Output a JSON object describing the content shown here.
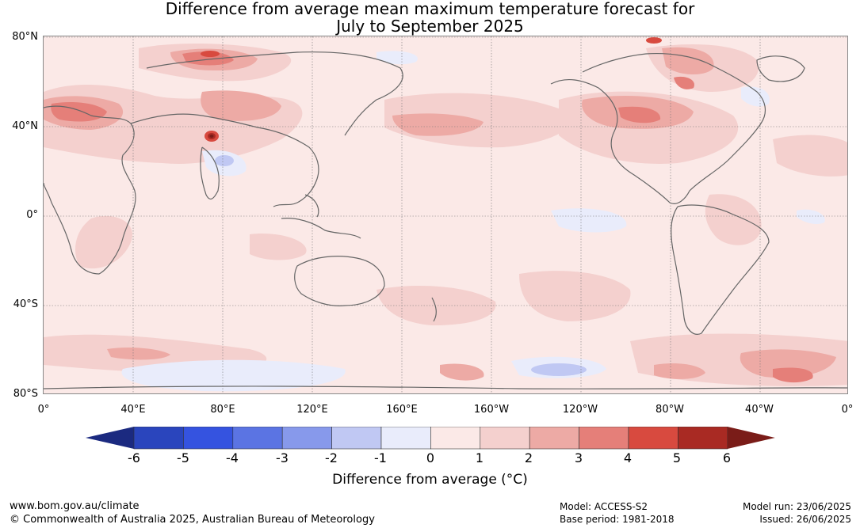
{
  "title": {
    "line1": "Difference from average mean maximum temperature forecast for",
    "line2": "July to September 2025"
  },
  "map": {
    "lat_labels": [
      "80°N",
      "40°N",
      "0°",
      "40°S",
      "80°S"
    ],
    "lon_labels": [
      "0°",
      "40°E",
      "80°E",
      "120°E",
      "160°E",
      "160°W",
      "120°W",
      "80°W",
      "40°W",
      "0°"
    ],
    "background_color": "#fbe9e7"
  },
  "colorbar": {
    "tick_labels": [
      "-6",
      "-5",
      "-4",
      "-3",
      "-2",
      "-1",
      "0",
      "1",
      "2",
      "3",
      "4",
      "5",
      "6"
    ],
    "colors": [
      "#1b2a80",
      "#2a45bd",
      "#3553e0",
      "#5b74e3",
      "#8799eb",
      "#c0c8f3",
      "#e9ecfb",
      "#fbe9e7",
      "#f4d0ce",
      "#edaaa5",
      "#e57f79",
      "#d84a3f",
      "#a92a23",
      "#7a1c18"
    ],
    "title": "Difference from average (°C)"
  },
  "footer": {
    "url": "www.bom.gov.au/climate",
    "copyright": "© Commonwealth of Australia 2025, Australian Bureau of Meteorology",
    "model": "Model: ACCESS-S2",
    "base_period": "Base period: 1981-2018",
    "model_run": "Model run: 23/06/2025",
    "issued": "Issued: 26/06/2025"
  }
}
